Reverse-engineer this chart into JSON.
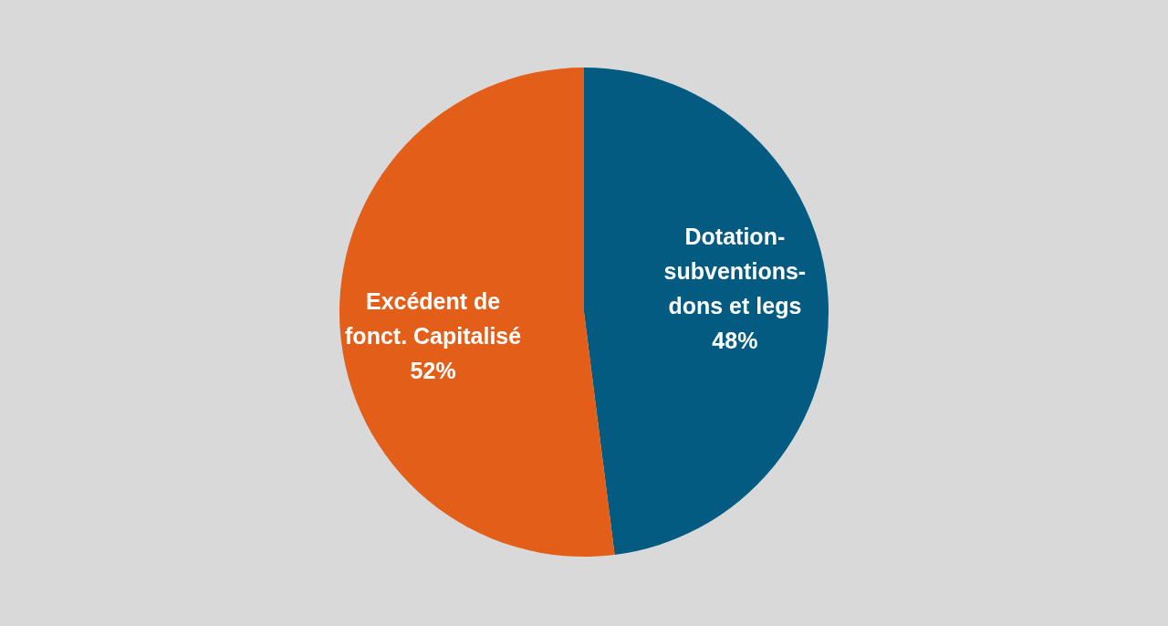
{
  "chart_data": {
    "type": "pie",
    "categories": [
      "Dotation-subventions-dons et legs",
      "Excédent de fonct. Capitalisé"
    ],
    "values": [
      48,
      52
    ],
    "colors": [
      "#035b82",
      "#e35e18"
    ],
    "value_labels": [
      "48%",
      "52%"
    ]
  }
}
